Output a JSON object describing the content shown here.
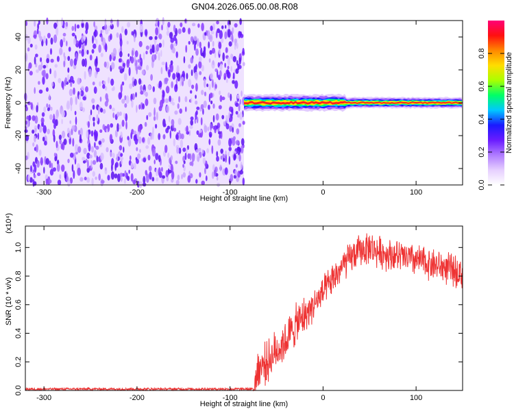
{
  "title": "GN04.2026.065.00.08.R08",
  "colors": {
    "background_noise": "#7a2cf0",
    "snr_line": "#ee3333",
    "colorbar": [
      "#ffffff",
      "#e6cfff",
      "#b07cff",
      "#6a1cff",
      "#1a1aff",
      "#00c8ff",
      "#00ff66",
      "#aaff00",
      "#ffdd00",
      "#ff8800",
      "#ff1010",
      "#ff0077"
    ]
  },
  "chart_data": [
    {
      "type": "heatmap",
      "name": "spectrogram",
      "xlabel": "Height of straight line (km)",
      "ylabel": "Frequency (Hz)",
      "xlim": [
        -320,
        150
      ],
      "ylim": [
        -50,
        50
      ],
      "xticks": [
        -300,
        -200,
        -100,
        0,
        100
      ],
      "yticks": [
        -40,
        -20,
        0,
        20,
        40
      ],
      "noise_region_x": [
        -320,
        -85
      ],
      "signal_region_x": [
        -85,
        150
      ],
      "signal_center_freq": 0,
      "colorbar": {
        "label": "Normalized spectral amplitude",
        "range": [
          0,
          1
        ],
        "ticks": [
          "0.0",
          "0.2",
          "0.4",
          "0.6",
          "0.8"
        ]
      },
      "grid": false
    },
    {
      "type": "line",
      "name": "snr",
      "xlabel": "Height of straight line (km)",
      "ylabel": "SNR (10 * v/v)",
      "y_multiplier": "(x10⁴)",
      "xlim": [
        -320,
        150
      ],
      "ylim": [
        0,
        1.15
      ],
      "xticks": [
        -300,
        -200,
        -100,
        0,
        100
      ],
      "yticks": [
        "0.0",
        "0.2",
        "0.4",
        "0.6",
        "0.8",
        "1.0"
      ],
      "key_points": {
        "x": [
          -320,
          -75,
          -70,
          -60,
          -50,
          -40,
          -30,
          -20,
          -10,
          0,
          10,
          20,
          30,
          40,
          50,
          60,
          80,
          100,
          120,
          150
        ],
        "y": [
          0.01,
          0.01,
          0.15,
          0.2,
          0.28,
          0.35,
          0.45,
          0.52,
          0.6,
          0.68,
          0.77,
          0.86,
          0.93,
          0.98,
          1.0,
          0.97,
          0.94,
          0.91,
          0.88,
          0.82
        ]
      },
      "grid": false
    }
  ]
}
